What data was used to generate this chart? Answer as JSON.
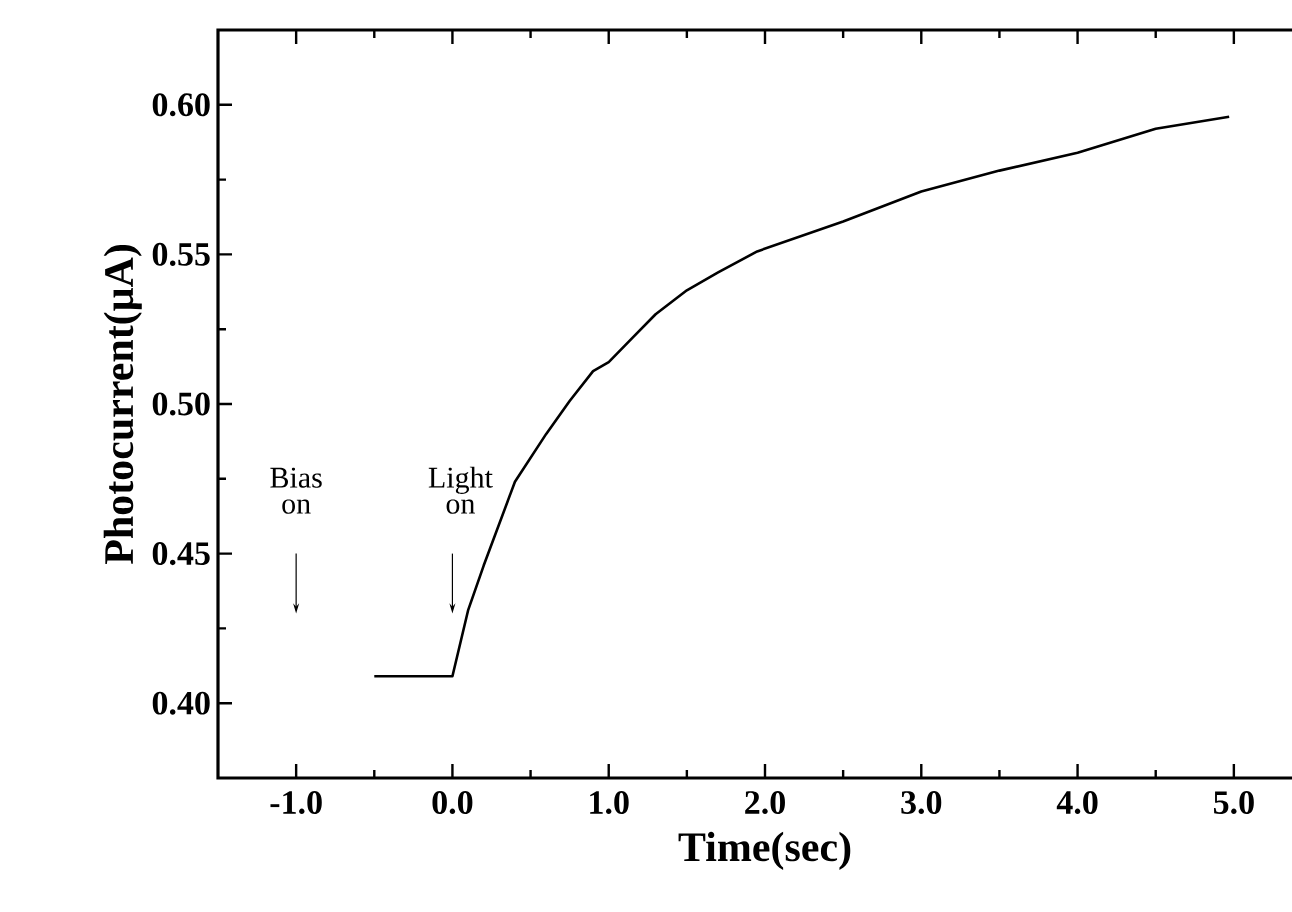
{
  "chart_data": {
    "type": "line",
    "xlabel": "Time(sec)",
    "ylabel": "Photocurrent(μA)",
    "x": [
      -0.5,
      0.0,
      0.1,
      0.2,
      0.4,
      0.6,
      0.75,
      0.9,
      1.0,
      1.15,
      1.3,
      1.5,
      1.7,
      1.95,
      2.5,
      3.0,
      3.5,
      4.0,
      4.5,
      4.97
    ],
    "series": [
      {
        "color": "#000000",
        "values": [
          0.409,
          0.409,
          0.431,
          0.446,
          0.474,
          0.49,
          0.501,
          0.511,
          0.514,
          0.522,
          0.53,
          0.538,
          0.544,
          0.551,
          0.561,
          0.571,
          0.578,
          0.584,
          0.592,
          0.596
        ]
      }
    ],
    "xlim": [
      -1.5,
      5.5
    ],
    "ylim": [
      0.375,
      0.625
    ],
    "xticks": [
      {
        "value": -1,
        "label": "-1.0"
      },
      {
        "value": 0,
        "label": "0.0"
      },
      {
        "value": 1,
        "label": "1.0"
      },
      {
        "value": 2,
        "label": "2.0"
      },
      {
        "value": 3,
        "label": "3.0"
      },
      {
        "value": 4,
        "label": "4.0"
      },
      {
        "value": 5,
        "label": "5.0"
      }
    ],
    "yticks": [
      {
        "value": 0.4,
        "label": "0.40"
      },
      {
        "value": 0.45,
        "label": "0.45"
      },
      {
        "value": 0.5,
        "label": "0.50"
      },
      {
        "value": 0.55,
        "label": "0.55"
      },
      {
        "value": 0.6,
        "label": "0.60"
      }
    ],
    "annotations": [
      "Bias on",
      "Light on"
    ],
    "line_style": "solid",
    "marker": "none",
    "grid": false
  }
}
